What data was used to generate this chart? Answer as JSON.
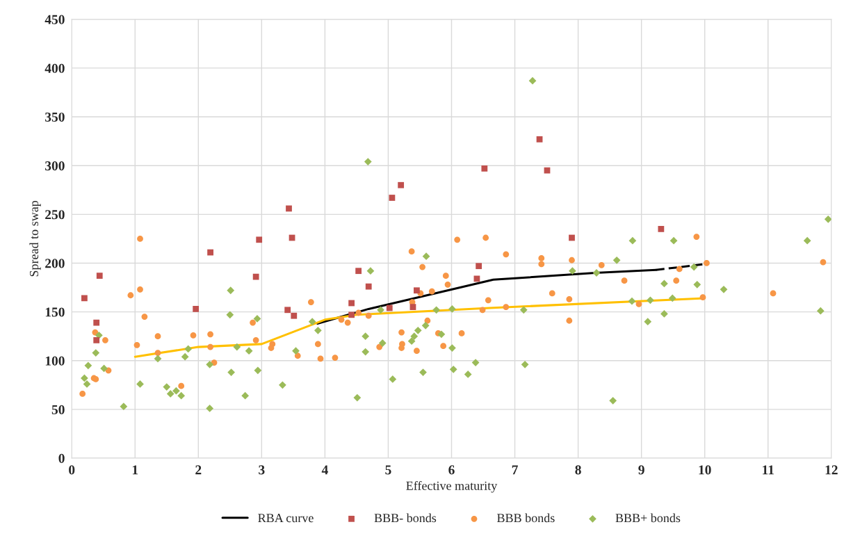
{
  "chart_data": {
    "type": "scatter",
    "xlabel": "Effective maturity",
    "ylabel": "Spread to swap",
    "xlim": [
      0,
      12
    ],
    "ylim": [
      0,
      450
    ],
    "xticks": [
      0,
      1,
      2,
      3,
      4,
      5,
      6,
      7,
      8,
      9,
      10,
      11,
      12
    ],
    "yticks": [
      0,
      50,
      100,
      150,
      200,
      250,
      300,
      350,
      400,
      450
    ],
    "grid": true,
    "legend": "bottom",
    "series": [
      {
        "name": "RBA curve",
        "type": "line",
        "color": "#000000",
        "marker": "none",
        "line_style": "solid",
        "x": [
          3.88,
          4.69,
          6.66,
          8.27,
          9.23
        ],
        "values": [
          138,
          153,
          183,
          190,
          193
        ]
      },
      {
        "type": "line",
        "color": "#000000",
        "marker": "none",
        "line_style": "dashed",
        "x": [
          9.23,
          10
        ],
        "values": [
          193,
          199
        ]
      },
      {
        "type": "line",
        "color": "#ffc000",
        "marker": "none",
        "line_style": "solid",
        "x": [
          1,
          2,
          3,
          4,
          4.5,
          6.6,
          10
        ],
        "values": [
          104,
          114,
          117,
          142,
          147,
          154,
          164
        ]
      },
      {
        "name": "BBB- bonds",
        "color": "#c0504d",
        "marker": "square",
        "x": [
          0.2,
          0.44,
          0.39,
          0.39,
          2.19,
          1.96,
          2.96,
          2.91,
          3.43,
          3.48,
          3.41,
          3.51,
          4.53,
          4.69,
          4.42,
          4.42,
          5.06,
          5.2,
          5.02,
          5.45,
          5.39,
          6.52,
          6.43,
          6.4,
          7.39,
          7.51,
          7.9,
          9.31
        ],
        "values": [
          164,
          187,
          139,
          121,
          211,
          153,
          224,
          186,
          256,
          226,
          152,
          146,
          192,
          176,
          159,
          147,
          267,
          280,
          154,
          172,
          155,
          297,
          197,
          184,
          327,
          295,
          226,
          235
        ]
      },
      {
        "name": "BBB bonds",
        "color": "#f79646",
        "marker": "circle",
        "x": [
          1.08,
          1.08,
          0.93,
          1.15,
          0.37,
          0.53,
          1.03,
          1.36,
          1.36,
          1.92,
          2.19,
          2.19,
          2.25,
          1.73,
          0.35,
          0.38,
          0.17,
          0.58,
          2.86,
          2.91,
          3.17,
          3.15,
          3.78,
          3.89,
          3.57,
          3.93,
          4.16,
          4.26,
          4.36,
          4.53,
          4.69,
          4.86,
          5.21,
          5.22,
          5.21,
          5.45,
          5.37,
          5.54,
          5.51,
          5.69,
          5.38,
          5.62,
          5.91,
          5.94,
          5.79,
          5.87,
          6.16,
          6.09,
          6.54,
          6.58,
          6.49,
          6.86,
          6.86,
          7.42,
          7.42,
          7.59,
          7.86,
          7.86,
          7.9,
          8.37,
          8.73,
          8.96,
          9.6,
          9.55,
          9.87,
          10.03,
          9.97,
          11.08,
          11.87
        ],
        "values": [
          225,
          173,
          167,
          145,
          129,
          121,
          116,
          125,
          108,
          126,
          127,
          114,
          98,
          74,
          82,
          81,
          66,
          90,
          139,
          121,
          117,
          113,
          160,
          117,
          105,
          102,
          103,
          142,
          139,
          149,
          146,
          114,
          129,
          117,
          113,
          110,
          212,
          196,
          169,
          171,
          160,
          141,
          187,
          178,
          128,
          115,
          128,
          224,
          226,
          162,
          152,
          209,
          155,
          205,
          199,
          169,
          163,
          141,
          203,
          198,
          182,
          158,
          194,
          182,
          227,
          200,
          165,
          169,
          201
        ]
      },
      {
        "name": "BBB+ bonds",
        "color": "#9bbb59",
        "marker": "diamond",
        "x": [
          0.43,
          0.38,
          0.26,
          0.2,
          0.24,
          0.51,
          0.82,
          1.08,
          1.36,
          1.79,
          1.84,
          1.5,
          1.56,
          1.65,
          1.73,
          2.18,
          2.18,
          2.51,
          2.5,
          2.52,
          2.61,
          2.8,
          2.74,
          2.93,
          2.94,
          3.33,
          3.54,
          3.8,
          3.89,
          4.68,
          4.72,
          5.6,
          4.88,
          4.64,
          4.64,
          4.91,
          5.07,
          5.47,
          5.59,
          5.41,
          5.37,
          5.55,
          5.76,
          5.84,
          6.01,
          6.01,
          6.03,
          6.26,
          6.38,
          4.51,
          7.28,
          7.14,
          7.16,
          7.91,
          8.29,
          8.61,
          8.86,
          9.51,
          8.85,
          9.14,
          9.1,
          9.36,
          9.36,
          9.49,
          9.83,
          9.88,
          10.3,
          8.55,
          11.62,
          11.95,
          11.83
        ],
        "values": [
          126,
          108,
          95,
          82,
          76,
          92,
          53,
          76,
          102,
          104,
          112,
          73,
          66,
          69,
          64,
          96,
          51,
          172,
          147,
          88,
          114,
          110,
          64,
          143,
          90,
          75,
          110,
          140,
          131,
          304,
          192,
          207,
          152,
          125,
          109,
          118,
          81,
          131,
          136,
          125,
          120,
          88,
          152,
          127,
          153,
          113,
          91,
          86,
          98,
          62,
          387,
          152,
          96,
          192,
          190,
          203,
          223,
          223,
          161,
          162,
          140,
          179,
          148,
          164,
          196,
          178,
          173,
          59,
          223,
          245,
          151
        ]
      }
    ]
  }
}
